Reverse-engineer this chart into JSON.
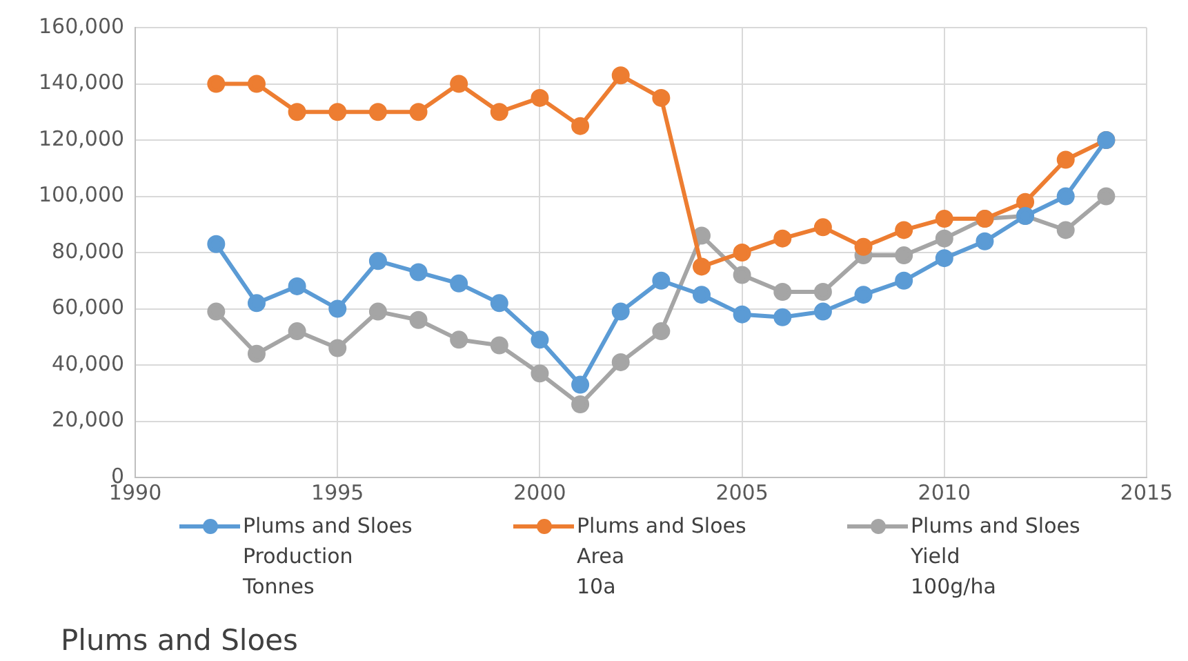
{
  "chart_data": {
    "type": "line",
    "title": "Plums and Sloes",
    "x": [
      1992,
      1993,
      1994,
      1995,
      1996,
      1997,
      1998,
      1999,
      2000,
      2001,
      2002,
      2003,
      2004,
      2005,
      2006,
      2007,
      2008,
      2009,
      2010,
      2011,
      2012,
      2013,
      2014
    ],
    "series": [
      {
        "name": "Plums and Sloes\nProduction\nTonnes",
        "color": "#5b9bd5",
        "values": [
          83000,
          62000,
          68000,
          60000,
          77000,
          73000,
          69000,
          62000,
          49000,
          33000,
          59000,
          70000,
          65000,
          58000,
          57000,
          59000,
          65000,
          70000,
          78000,
          84000,
          93000,
          100000,
          120000
        ]
      },
      {
        "name": "Plums and Sloes\nArea\n10a",
        "color": "#ed7d31",
        "values": [
          140000,
          140000,
          130000,
          130000,
          130000,
          130000,
          140000,
          130000,
          135000,
          125000,
          143000,
          135000,
          75000,
          80000,
          85000,
          89000,
          82000,
          88000,
          92000,
          92000,
          98000,
          113000,
          120000
        ]
      },
      {
        "name": "Plums and Sloes\nYield\n100g/ha",
        "color": "#a5a5a5",
        "values": [
          59000,
          44000,
          52000,
          46000,
          59000,
          56000,
          49000,
          47000,
          37000,
          26000,
          41000,
          52000,
          86000,
          72000,
          66000,
          66000,
          79000,
          79000,
          85000,
          92000,
          93000,
          88000,
          100000
        ]
      }
    ],
    "xlim": [
      1990,
      2015
    ],
    "xticks": [
      1990,
      1995,
      2000,
      2005,
      2010,
      2015
    ],
    "ylim": [
      0,
      160000
    ],
    "yticks": [
      0,
      {
        "value": 20000,
        "label": "20,000"
      },
      {
        "value": 40000,
        "label": "40,000"
      },
      {
        "value": 60000,
        "label": "60,000"
      },
      {
        "value": 80000,
        "label": "80,000"
      },
      {
        "value": 100000,
        "label": "100,000"
      },
      {
        "value": 120000,
        "label": "120,000"
      },
      {
        "value": 140000,
        "label": "140,000"
      },
      {
        "value": 160000,
        "label": "160,000"
      }
    ],
    "grid": true,
    "legend": "bottom",
    "marker": "circle",
    "line_style": "solid"
  }
}
